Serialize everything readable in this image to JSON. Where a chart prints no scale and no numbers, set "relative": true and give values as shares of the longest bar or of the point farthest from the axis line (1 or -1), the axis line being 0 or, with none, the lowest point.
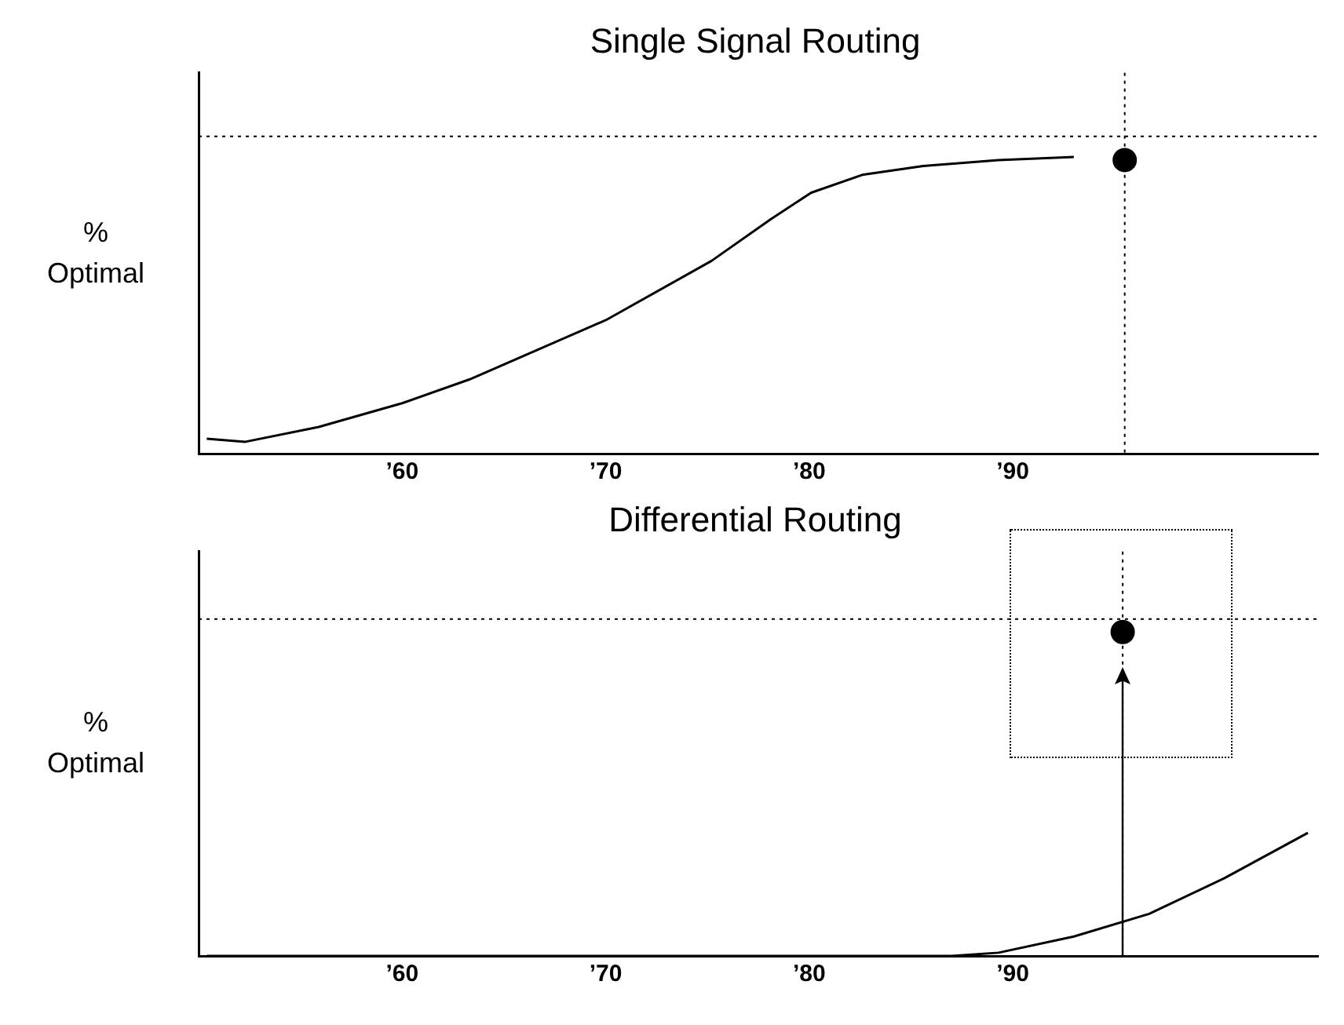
{
  "chart_data": [
    {
      "type": "line",
      "title": "Single Signal Routing",
      "ylabel": "% Optimal",
      "relative": true,
      "legend": false,
      "grid": false,
      "xlim": [
        1950,
        2005
      ],
      "xticks": [
        {
          "value": 1960,
          "label": "’60"
        },
        {
          "value": 1970,
          "label": "’70"
        },
        {
          "value": 1980,
          "label": "’80"
        },
        {
          "value": 1990,
          "label": "’90"
        }
      ],
      "series": [
        {
          "color": "#000000",
          "marker": "none",
          "x": [
            1950.4,
            1952.3,
            1955.9,
            1960,
            1963.3,
            1970,
            1975.2,
            1978.1,
            1980.1,
            1982.6,
            1985.6,
            1989.3,
            1993
          ],
          "values": [
            0.05,
            0.04,
            0.09,
            0.17,
            0.25,
            0.45,
            0.65,
            0.79,
            0.88,
            0.94,
            0.97,
            0.99,
            1
          ]
        },
        {
          "type": "scatter",
          "color": "#000000",
          "marker": "circle",
          "x": [
            1995.5
          ],
          "values": [
            0.99
          ]
        }
      ],
      "ref_lines": [
        {
          "axis": "y",
          "value": 1.07,
          "line_style": "dotted"
        },
        {
          "axis": "x",
          "value": 1995.5,
          "line_style": "dotted"
        }
      ]
    },
    {
      "type": "line",
      "title": "Differential Routing",
      "ylabel": "% Optimal",
      "relative": true,
      "legend": false,
      "grid": false,
      "xlim": [
        1950,
        2005
      ],
      "xticks": [
        {
          "value": 1960,
          "label": "’60"
        },
        {
          "value": 1970,
          "label": "’70"
        },
        {
          "value": 1980,
          "label": "’80"
        },
        {
          "value": 1990,
          "label": "’90"
        }
      ],
      "series": [
        {
          "color": "#000000",
          "marker": "none",
          "x": [
            1950.4,
            1960,
            1970,
            1980,
            1987,
            1989.3,
            1993,
            1996.7,
            2000.4,
            2004.5
          ],
          "values": [
            0,
            0,
            0,
            0,
            0,
            0.01,
            0.06,
            0.13,
            0.24,
            0.38
          ]
        },
        {
          "type": "scatter",
          "color": "#000000",
          "marker": "circle",
          "x": [
            1995.4
          ],
          "values": [
            1
          ]
        }
      ],
      "ref_lines": [
        {
          "axis": "y",
          "value": 1.04,
          "line_style": "dotted"
        },
        {
          "axis": "x",
          "value": 1995.4,
          "line_style": "dotted"
        }
      ]
    }
  ]
}
